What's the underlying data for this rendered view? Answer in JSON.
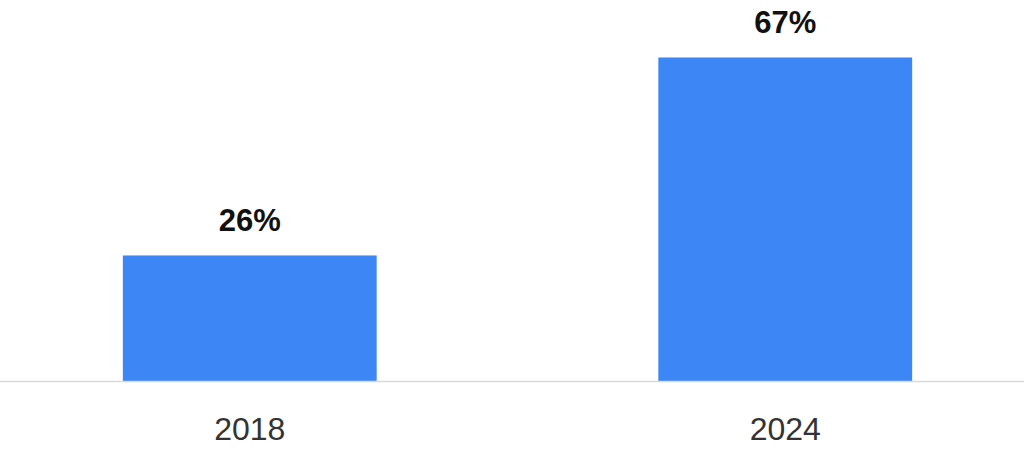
{
  "chart_data": {
    "type": "bar",
    "categories": [
      "2018",
      "2024"
    ],
    "values": [
      26,
      67
    ],
    "value_labels": [
      "26%",
      "67%"
    ],
    "color": "#3d86f6",
    "ylim": [
      0,
      70
    ],
    "data_labels": true,
    "tick_labels": "x",
    "grid": false
  }
}
